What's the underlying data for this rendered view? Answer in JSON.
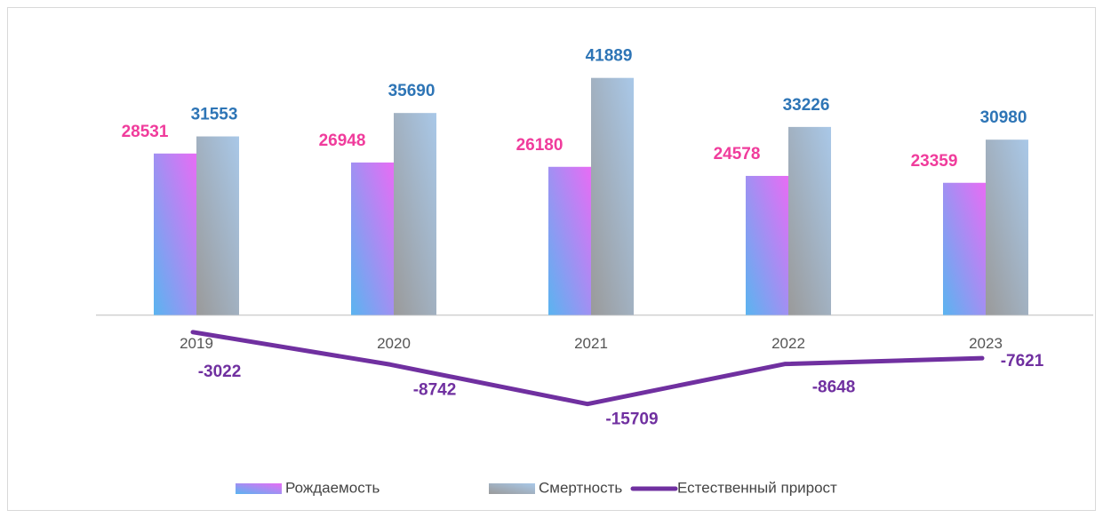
{
  "chart_data": {
    "type": "bar",
    "categories": [
      "2019",
      "2020",
      "2021",
      "2022",
      "2023"
    ],
    "series": [
      {
        "name": "Рождаемость",
        "color": "#e86cf5",
        "values": [
          28531,
          26948,
          26180,
          24578,
          23359
        ]
      },
      {
        "name": "Смертность",
        "color": "#a9c8e8",
        "values": [
          31553,
          35690,
          41889,
          33226,
          30980
        ]
      },
      {
        "name": "Естественный прирост",
        "color": "#7030a0",
        "type": "line",
        "values": [
          -3022,
          -8742,
          -15709,
          -8648,
          -7621
        ]
      }
    ],
    "ylim": [
      -20000,
      50000
    ],
    "legend": "bottom"
  }
}
